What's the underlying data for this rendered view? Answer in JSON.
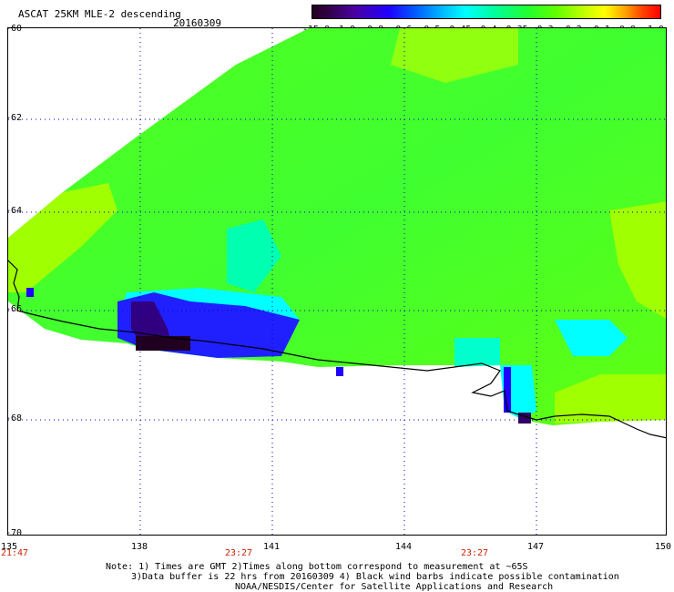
{
  "header": {
    "title": "ASCAT 25KM MLE-2 descending",
    "date": "20160309"
  },
  "colorbar": {
    "ticks": [
      "-15.0",
      "-1.0",
      "-0.8",
      "-0.6",
      "-0.5",
      "-0.45",
      "-0.4",
      "-0.35",
      "-0.3",
      "-0.2",
      "-0.1",
      "0.0",
      "1.0"
    ]
  },
  "map": {
    "lat_labels": [
      "-60",
      "-62",
      "-64",
      "-66",
      "-68",
      "-70"
    ],
    "lon_labels": [
      "135",
      "138",
      "141",
      "144",
      "147",
      "150"
    ],
    "time_labels": [
      "21:47",
      "23:27",
      "23:27"
    ],
    "colors": {
      "grid": "#0000cc",
      "coast": "#000000",
      "time_label": "#cc2200",
      "field_dominant": "#40ff20",
      "field_high": "#a0ff00",
      "field_low": "#00ffff",
      "field_min": "#2000a0"
    }
  },
  "footer": {
    "note1": "Note: 1) Times are GMT 2)Times along bottom correspond to measurement at ~65S",
    "note2": "3)Data buffer is 22 hrs from 20160309 4) Black wind barbs indicate possible contamination",
    "note3": "NOAA/NESDIS/Center for Satellite Applications and Research"
  }
}
